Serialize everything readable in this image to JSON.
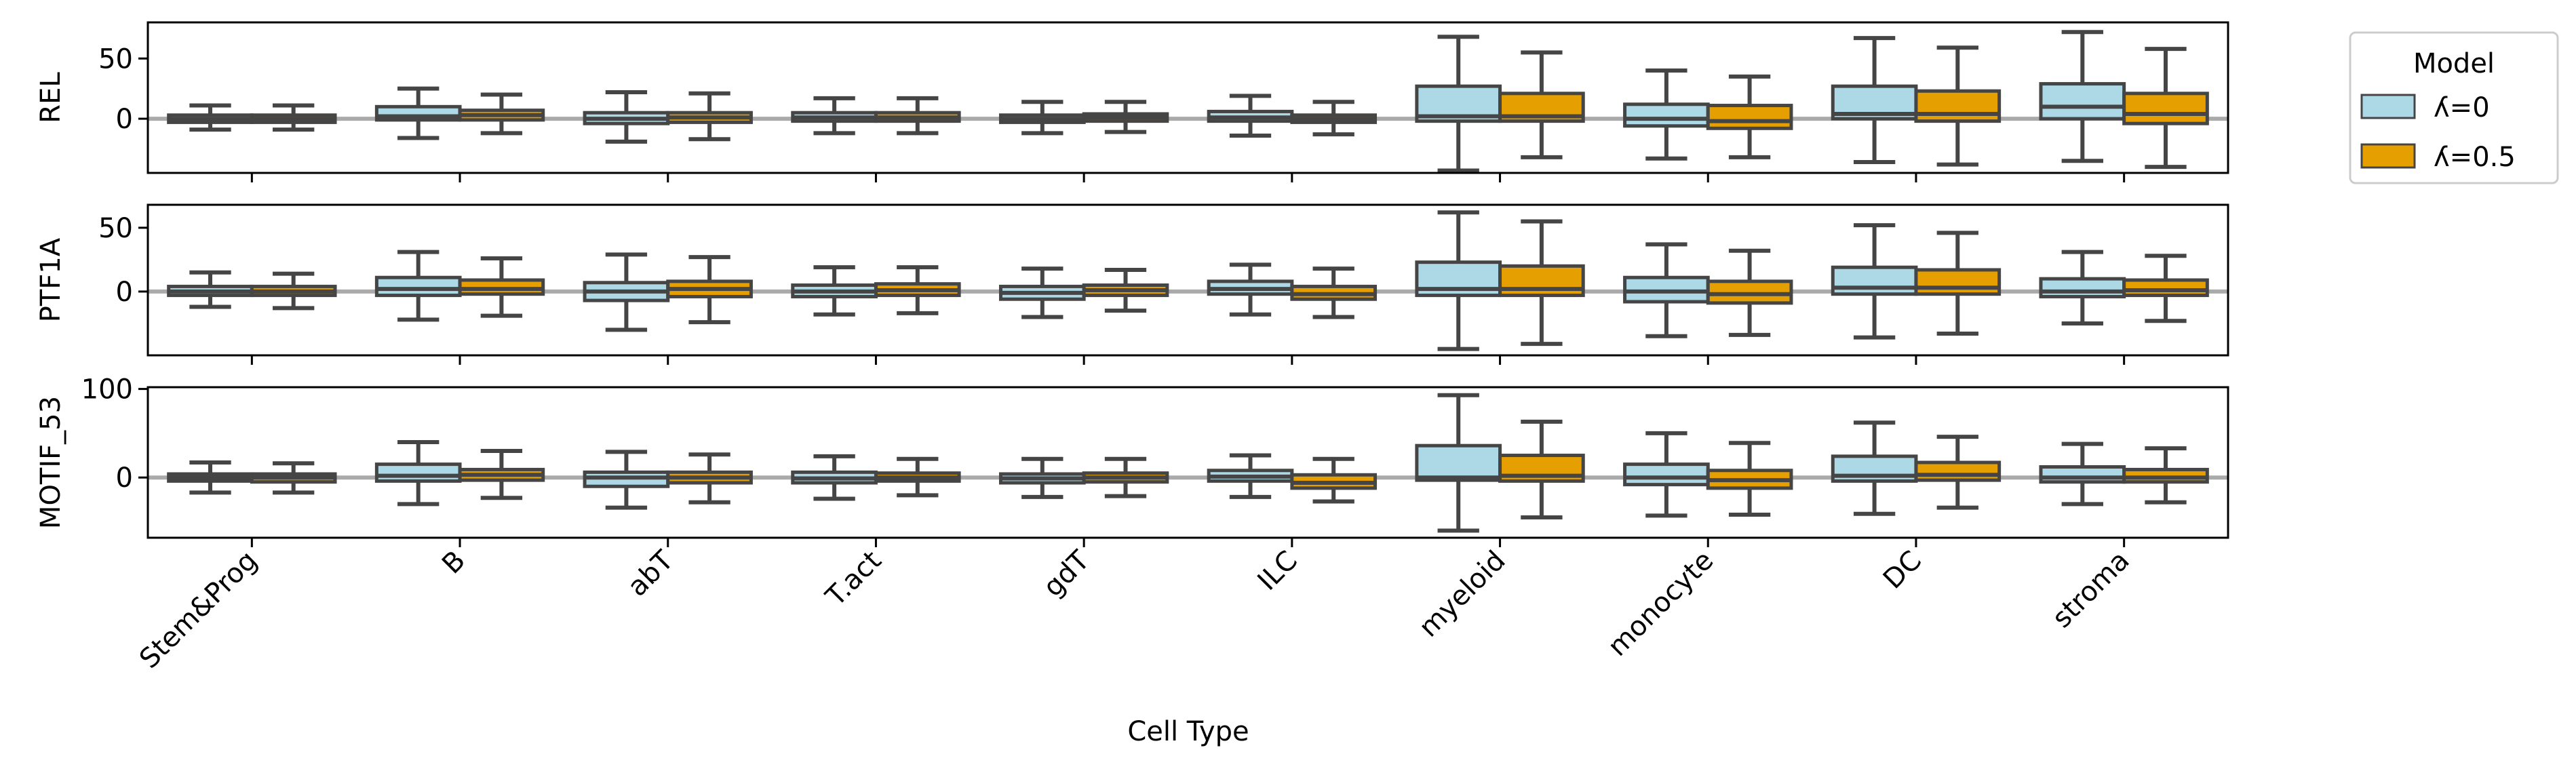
{
  "chart_data": {
    "type": "box",
    "xlabel": "Cell Type",
    "categories": [
      "Stem&Prog",
      "B",
      "abT",
      "T.act",
      "gdT",
      "ILC",
      "myeloid",
      "monocyte",
      "DC",
      "stroma"
    ],
    "legend": {
      "title": "Model",
      "placement": "outside-right",
      "entries": [
        {
          "label": "ʎ=0",
          "color": "#add8e6"
        },
        {
          "label": "ʎ=0.5",
          "color": "#e69f00"
        }
      ]
    },
    "grid": false,
    "reference_line_y": 0,
    "panels": [
      {
        "ylabel": "REL",
        "ylim": [
          -45,
          80
        ],
        "yticks": [
          0,
          50
        ],
        "series": [
          {
            "name": "ʎ=0",
            "boxes": [
              {
                "min": -9,
                "q1": -3,
                "median": 0,
                "q3": 3,
                "max": 11
              },
              {
                "min": -16,
                "q1": -1,
                "median": 2,
                "q3": 10,
                "max": 25
              },
              {
                "min": -19,
                "q1": -4,
                "median": 0,
                "q3": 5,
                "max": 22
              },
              {
                "min": -12,
                "q1": -2,
                "median": 1,
                "q3": 5,
                "max": 17
              },
              {
                "min": -12,
                "q1": -3,
                "median": 0,
                "q3": 3,
                "max": 14
              },
              {
                "min": -14,
                "q1": -2,
                "median": 1,
                "q3": 6,
                "max": 19
              },
              {
                "min": -43,
                "q1": -2,
                "median": 2,
                "q3": 27,
                "max": 68
              },
              {
                "min": -33,
                "q1": -6,
                "median": 0,
                "q3": 12,
                "max": 40
              },
              {
                "min": -36,
                "q1": 0,
                "median": 4,
                "q3": 27,
                "max": 67
              },
              {
                "min": -35,
                "q1": 0,
                "median": 10,
                "q3": 29,
                "max": 72
              }
            ]
          },
          {
            "name": "ʎ=0.5",
            "boxes": [
              {
                "min": -9,
                "q1": -3,
                "median": 0,
                "q3": 3,
                "max": 11
              },
              {
                "min": -12,
                "q1": -1,
                "median": 3,
                "q3": 7,
                "max": 20
              },
              {
                "min": -17,
                "q1": -3,
                "median": 1,
                "q3": 5,
                "max": 21
              },
              {
                "min": -12,
                "q1": -2,
                "median": 1,
                "q3": 5,
                "max": 17
              },
              {
                "min": -11,
                "q1": -2,
                "median": 1,
                "q3": 4,
                "max": 14
              },
              {
                "min": -13,
                "q1": -3,
                "median": 0,
                "q3": 3,
                "max": 14
              },
              {
                "min": -32,
                "q1": -2,
                "median": 2,
                "q3": 21,
                "max": 55
              },
              {
                "min": -32,
                "q1": -8,
                "median": -2,
                "q3": 11,
                "max": 35
              },
              {
                "min": -38,
                "q1": -2,
                "median": 4,
                "q3": 23,
                "max": 59
              },
              {
                "min": -40,
                "q1": -4,
                "median": 4,
                "q3": 21,
                "max": 58
              }
            ]
          }
        ]
      },
      {
        "ylabel": "PTF1A",
        "ylim": [
          -50,
          68
        ],
        "yticks": [
          0,
          50
        ],
        "series": [
          {
            "name": "ʎ=0",
            "boxes": [
              {
                "min": -12,
                "q1": -3,
                "median": 0,
                "q3": 4,
                "max": 15
              },
              {
                "min": -22,
                "q1": -3,
                "median": 2,
                "q3": 11,
                "max": 31
              },
              {
                "min": -30,
                "q1": -7,
                "median": 0,
                "q3": 7,
                "max": 29
              },
              {
                "min": -18,
                "q1": -4,
                "median": 0,
                "q3": 5,
                "max": 19
              },
              {
                "min": -20,
                "q1": -6,
                "median": -1,
                "q3": 4,
                "max": 18
              },
              {
                "min": -18,
                "q1": -2,
                "median": 2,
                "q3": 8,
                "max": 21
              },
              {
                "min": -45,
                "q1": -3,
                "median": 2,
                "q3": 23,
                "max": 62
              },
              {
                "min": -35,
                "q1": -8,
                "median": 0,
                "q3": 11,
                "max": 37
              },
              {
                "min": -36,
                "q1": -2,
                "median": 3,
                "q3": 19,
                "max": 52
              },
              {
                "min": -25,
                "q1": -4,
                "median": 0,
                "q3": 10,
                "max": 31
              }
            ]
          },
          {
            "name": "ʎ=0.5",
            "boxes": [
              {
                "min": -13,
                "q1": -3,
                "median": 0,
                "q3": 4,
                "max": 14
              },
              {
                "min": -19,
                "q1": -2,
                "median": 2,
                "q3": 9,
                "max": 26
              },
              {
                "min": -24,
                "q1": -4,
                "median": 2,
                "q3": 8,
                "max": 27
              },
              {
                "min": -17,
                "q1": -3,
                "median": 1,
                "q3": 6,
                "max": 19
              },
              {
                "min": -15,
                "q1": -3,
                "median": 1,
                "q3": 5,
                "max": 17
              },
              {
                "min": -20,
                "q1": -6,
                "median": -2,
                "q3": 4,
                "max": 18
              },
              {
                "min": -41,
                "q1": -3,
                "median": 2,
                "q3": 20,
                "max": 55
              },
              {
                "min": -34,
                "q1": -9,
                "median": -2,
                "q3": 8,
                "max": 32
              },
              {
                "min": -33,
                "q1": -2,
                "median": 3,
                "q3": 17,
                "max": 46
              },
              {
                "min": -23,
                "q1": -3,
                "median": 1,
                "q3": 9,
                "max": 28
              }
            ]
          }
        ]
      },
      {
        "ylabel": "MOTIF_53",
        "ylim": [
          -68,
          102
        ],
        "yticks": [
          0,
          100
        ],
        "series": [
          {
            "name": "ʎ=0",
            "boxes": [
              {
                "min": -17,
                "q1": -4,
                "median": 0,
                "q3": 4,
                "max": 17
              },
              {
                "min": -30,
                "q1": -4,
                "median": 2,
                "q3": 15,
                "max": 40
              },
              {
                "min": -34,
                "q1": -10,
                "median": 0,
                "q3": 6,
                "max": 29
              },
              {
                "min": -24,
                "q1": -6,
                "median": -1,
                "q3": 6,
                "max": 24
              },
              {
                "min": -22,
                "q1": -6,
                "median": -1,
                "q3": 4,
                "max": 21
              },
              {
                "min": -22,
                "q1": -4,
                "median": 1,
                "q3": 8,
                "max": 25
              },
              {
                "min": -60,
                "q1": -3,
                "median": 0,
                "q3": 36,
                "max": 93
              },
              {
                "min": -43,
                "q1": -8,
                "median": 0,
                "q3": 15,
                "max": 50
              },
              {
                "min": -41,
                "q1": -4,
                "median": 2,
                "q3": 24,
                "max": 62
              },
              {
                "min": -30,
                "q1": -5,
                "median": 0,
                "q3": 12,
                "max": 38
              }
            ]
          },
          {
            "name": "ʎ=0.5",
            "boxes": [
              {
                "min": -17,
                "q1": -5,
                "median": 0,
                "q3": 4,
                "max": 16
              },
              {
                "min": -23,
                "q1": -3,
                "median": 3,
                "q3": 9,
                "max": 30
              },
              {
                "min": -28,
                "q1": -6,
                "median": 0,
                "q3": 6,
                "max": 26
              },
              {
                "min": -20,
                "q1": -4,
                "median": 0,
                "q3": 5,
                "max": 21
              },
              {
                "min": -21,
                "q1": -5,
                "median": 0,
                "q3": 5,
                "max": 21
              },
              {
                "min": -27,
                "q1": -12,
                "median": -6,
                "q3": 3,
                "max": 21
              },
              {
                "min": -45,
                "q1": -4,
                "median": 2,
                "q3": 25,
                "max": 63
              },
              {
                "min": -42,
                "q1": -12,
                "median": -3,
                "q3": 8,
                "max": 39
              },
              {
                "min": -34,
                "q1": -3,
                "median": 3,
                "q3": 17,
                "max": 46
              },
              {
                "min": -28,
                "q1": -5,
                "median": 0,
                "q3": 9,
                "max": 33
              }
            ]
          }
        ]
      }
    ]
  }
}
